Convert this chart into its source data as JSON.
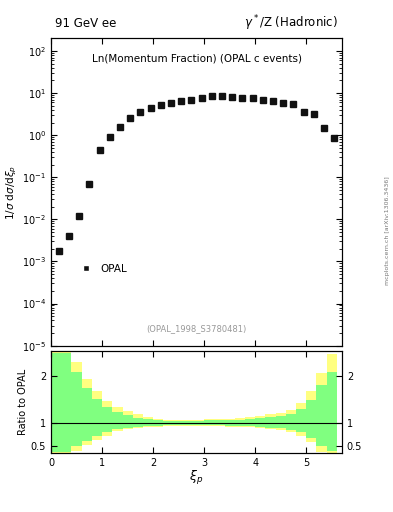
{
  "title_left": "91 GeV ee",
  "title_right": "γ*/Z (Hadronic)",
  "main_label": "Ln(Momentum Fraction) (OPAL c events)",
  "watermark": "(OPAL_1998_S3780481)",
  "side_text": "mcplots.cern.ch [arXiv:1306.3436]",
  "legend_label": "OPAL",
  "data_x": [
    0.15,
    0.35,
    0.55,
    0.75,
    0.95,
    1.15,
    1.35,
    1.55,
    1.75,
    1.95,
    2.15,
    2.35,
    2.55,
    2.75,
    2.95,
    3.15,
    3.35,
    3.55,
    3.75,
    3.95,
    4.15,
    4.35,
    4.55,
    4.75,
    4.95,
    5.15,
    5.35,
    5.55
  ],
  "data_y": [
    0.0018,
    0.004,
    0.012,
    0.07,
    0.45,
    0.9,
    1.6,
    2.5,
    3.5,
    4.5,
    5.2,
    5.8,
    6.5,
    7.0,
    7.5,
    8.5,
    8.5,
    8.2,
    7.8,
    7.5,
    7.0,
    6.5,
    5.8,
    5.5,
    3.5,
    3.2,
    1.5,
    0.85
  ],
  "xlim": [
    0,
    5.7
  ],
  "ylim_main": [
    1e-05,
    200
  ],
  "ylim_ratio": [
    0.35,
    2.55
  ],
  "green_band_edges": [
    0.0,
    0.2,
    0.4,
    0.6,
    0.8,
    1.0,
    1.2,
    1.4,
    1.6,
    1.8,
    2.0,
    2.2,
    2.4,
    2.6,
    2.8,
    3.0,
    3.2,
    3.4,
    3.6,
    3.8,
    4.0,
    4.2,
    4.4,
    4.6,
    4.8,
    5.0,
    5.2,
    5.4,
    5.6
  ],
  "green_lo": [
    0.38,
    0.38,
    0.5,
    0.62,
    0.72,
    0.8,
    0.87,
    0.9,
    0.92,
    0.93,
    0.94,
    0.95,
    0.95,
    0.95,
    0.95,
    0.95,
    0.95,
    0.94,
    0.94,
    0.93,
    0.92,
    0.9,
    0.88,
    0.85,
    0.8,
    0.68,
    0.5,
    0.4,
    0.38
  ],
  "green_hi": [
    2.5,
    2.5,
    2.1,
    1.75,
    1.52,
    1.35,
    1.24,
    1.17,
    1.11,
    1.08,
    1.06,
    1.05,
    1.05,
    1.05,
    1.05,
    1.06,
    1.06,
    1.06,
    1.07,
    1.08,
    1.1,
    1.12,
    1.15,
    1.2,
    1.3,
    1.5,
    1.82,
    2.1,
    2.5
  ],
  "yellow_lo": [
    0.35,
    0.35,
    0.4,
    0.52,
    0.63,
    0.72,
    0.82,
    0.86,
    0.89,
    0.91,
    0.92,
    0.93,
    0.93,
    0.93,
    0.93,
    0.93,
    0.93,
    0.92,
    0.92,
    0.91,
    0.9,
    0.87,
    0.84,
    0.8,
    0.72,
    0.58,
    0.38,
    0.35,
    0.35
  ],
  "yellow_hi": [
    2.6,
    2.6,
    2.3,
    1.95,
    1.68,
    1.48,
    1.35,
    1.25,
    1.18,
    1.12,
    1.09,
    1.07,
    1.07,
    1.07,
    1.07,
    1.08,
    1.08,
    1.09,
    1.1,
    1.12,
    1.15,
    1.18,
    1.22,
    1.28,
    1.42,
    1.68,
    2.08,
    2.48,
    2.6
  ],
  "green_color": "#80ff80",
  "yellow_color": "#ffff80",
  "marker_color": "#111111",
  "marker_size": 4.5,
  "bg_color": "#ffffff"
}
